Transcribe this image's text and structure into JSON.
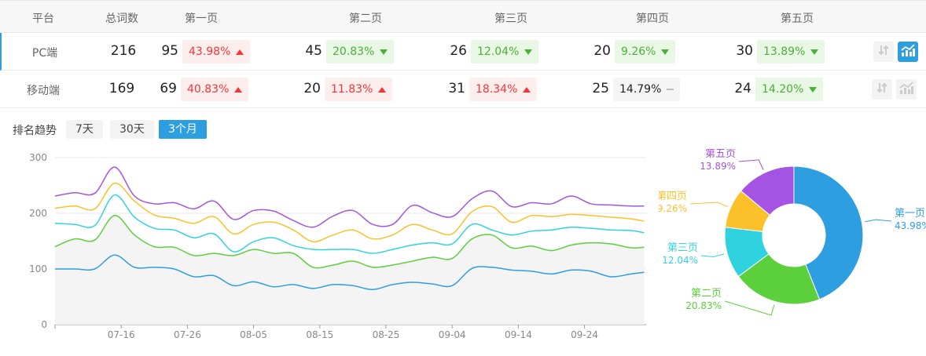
{
  "table": {
    "headers": [
      "平台",
      "总词数",
      "第一页",
      "第二页",
      "第三页",
      "第四页",
      "第五页"
    ],
    "rows": [
      {
        "platform": "PC端",
        "total": "216",
        "selected": true,
        "pages": [
          {
            "count": "95",
            "pct": "43.98%",
            "trend": "up"
          },
          {
            "count": "45",
            "pct": "20.83%",
            "trend": "down"
          },
          {
            "count": "26",
            "pct": "12.04%",
            "trend": "down"
          },
          {
            "count": "20",
            "pct": "9.26%",
            "trend": "down"
          },
          {
            "count": "30",
            "pct": "13.89%",
            "trend": "down"
          }
        ]
      },
      {
        "platform": "移动端",
        "total": "169",
        "selected": false,
        "pages": [
          {
            "count": "69",
            "pct": "40.83%",
            "trend": "up"
          },
          {
            "count": "20",
            "pct": "11.83%",
            "trend": "up"
          },
          {
            "count": "31",
            "pct": "18.34%",
            "trend": "up"
          },
          {
            "count": "25",
            "pct": "14.79%",
            "trend": "flat"
          },
          {
            "count": "24",
            "pct": "14.20%",
            "trend": "down"
          }
        ]
      }
    ],
    "icons": [
      "sort-icon",
      "trend-chart-icon"
    ]
  },
  "trend": {
    "label": "排名趋势",
    "ranges": [
      {
        "label": "7天",
        "active": false
      },
      {
        "label": "30天",
        "active": false
      },
      {
        "label": "3个月",
        "active": true
      }
    ]
  },
  "colors": {
    "blue": "#2d9ee0",
    "green": "#5ccf3c",
    "cyan": "#2fd3e0",
    "yellow": "#fcc12a",
    "purple": "#a553e3",
    "up": "#f5353a",
    "down": "#4caf3a"
  },
  "chart_data": [
    {
      "type": "line",
      "ylim": [
        0,
        300
      ],
      "yticks": [
        0,
        100,
        200,
        300
      ],
      "xticks": [
        "07-16",
        "07-26",
        "08-05",
        "08-15",
        "08-25",
        "09-04",
        "09-14",
        "09-24"
      ],
      "grid": true,
      "x": [
        "07-06",
        "07-09",
        "07-12",
        "07-15",
        "07-18",
        "07-21",
        "07-24",
        "07-27",
        "07-30",
        "08-02",
        "08-05",
        "08-08",
        "08-11",
        "08-14",
        "08-17",
        "08-20",
        "08-23",
        "08-26",
        "08-29",
        "09-01",
        "09-04",
        "09-07",
        "09-10",
        "09-13",
        "09-16",
        "09-19",
        "09-22",
        "09-25",
        "09-28",
        "10-01",
        "10-03"
      ],
      "series": [
        {
          "color": "#a553e3",
          "values": [
            231,
            237,
            236,
            283,
            231,
            217,
            219,
            208,
            222,
            189,
            205,
            204,
            187,
            175,
            195,
            205,
            180,
            180,
            214,
            201,
            194,
            226,
            240,
            212,
            219,
            217,
            231,
            217,
            215,
            213,
            213
          ]
        },
        {
          "color": "#fcc12a",
          "values": [
            209,
            213,
            208,
            254,
            222,
            197,
            191,
            182,
            194,
            163,
            180,
            184,
            170,
            149,
            161,
            170,
            154,
            161,
            180,
            170,
            163,
            203,
            212,
            184,
            196,
            194,
            198,
            196,
            193,
            190,
            186
          ]
        },
        {
          "color": "#2fd3e0",
          "values": [
            182,
            180,
            178,
            233,
            193,
            173,
            170,
            156,
            163,
            131,
            149,
            156,
            142,
            135,
            135,
            135,
            128,
            135,
            143,
            147,
            145,
            180,
            170,
            161,
            168,
            170,
            175,
            173,
            170,
            169,
            165
          ]
        },
        {
          "color": "#5ccf3c",
          "values": [
            140,
            154,
            152,
            196,
            161,
            140,
            139,
            124,
            128,
            124,
            135,
            128,
            128,
            103,
            107,
            114,
            103,
            107,
            114,
            121,
            119,
            154,
            161,
            138,
            141,
            133,
            143,
            147,
            145,
            138,
            139
          ]
        },
        {
          "color": "#2d9ee0",
          "values": [
            100,
            100,
            100,
            125,
            103,
            103,
            100,
            86,
            88,
            70,
            77,
            68,
            72,
            65,
            72,
            70,
            63,
            72,
            76,
            73,
            70,
            101,
            103,
            98,
            96,
            91,
            98,
            96,
            86,
            91,
            94
          ]
        }
      ]
    },
    {
      "type": "pie",
      "categories": [
        "第一页",
        "第二页",
        "第三页",
        "第四页",
        "第五页"
      ],
      "values": [
        43.98,
        20.83,
        12.04,
        9.26,
        13.89
      ],
      "labels": [
        "43.98%",
        "20.83%",
        "12.04%",
        "9.26%",
        "13.89%"
      ],
      "colors": [
        "#2d9ee0",
        "#5ccf3c",
        "#2fd3e0",
        "#fcc12a",
        "#a553e3"
      ]
    }
  ]
}
